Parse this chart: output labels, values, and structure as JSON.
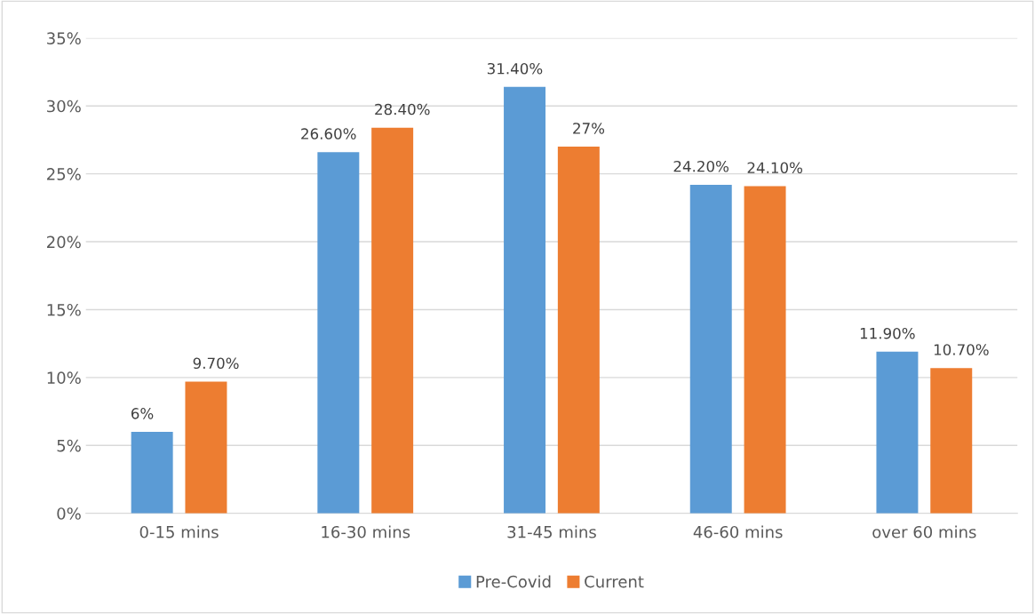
{
  "chart_data": {
    "type": "bar",
    "categories": [
      "0-15 mins",
      "16-30 mins",
      "31-45 mins",
      "46-60 mins",
      "over 60 mins"
    ],
    "series": [
      {
        "name": "Pre-Covid",
        "color": "#5b9bd5",
        "values": [
          6,
          26.6,
          31.4,
          24.2,
          11.9
        ],
        "value_labels": [
          "6%",
          "26.60%",
          "31.40%",
          "24.20%",
          "11.90%"
        ]
      },
      {
        "name": "Current",
        "color": "#ed7d31",
        "values": [
          9.7,
          28.4,
          27,
          24.1,
          10.7
        ],
        "value_labels": [
          "9.70%",
          "28.40%",
          "27%",
          "24.10%",
          "10.70%"
        ]
      }
    ],
    "ylim": [
      0,
      35
    ],
    "yticks": [
      {
        "value": 0,
        "label": "0%"
      },
      {
        "value": 5,
        "label": "5%"
      },
      {
        "value": 10,
        "label": "10%"
      },
      {
        "value": 15,
        "label": "15%"
      },
      {
        "value": 20,
        "label": "20%"
      },
      {
        "value": 25,
        "label": "25%"
      },
      {
        "value": 30,
        "label": "30%"
      },
      {
        "value": 35,
        "label": "35%"
      }
    ],
    "grid": "y",
    "legend": "bottom"
  }
}
